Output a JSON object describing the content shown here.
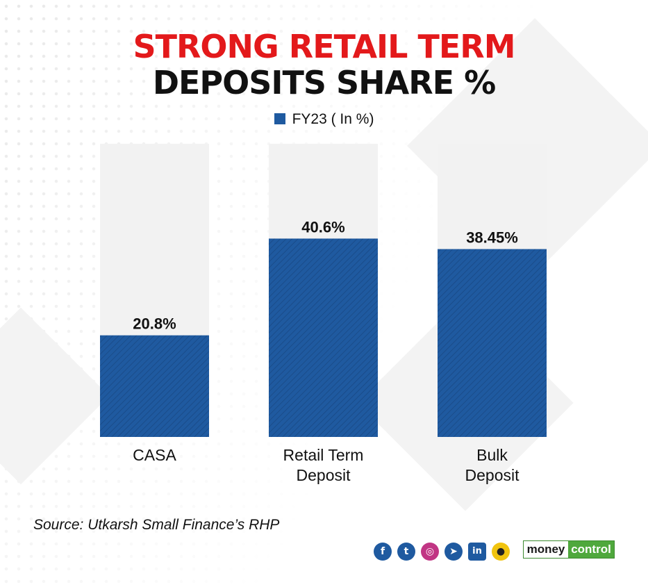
{
  "title": {
    "line1": "STRONG RETAIL TERM",
    "line2": "DEPOSITS SHARE %"
  },
  "legend": {
    "label": "FY23 ( In %)",
    "color": "#1f5aa0"
  },
  "chart_data": {
    "type": "bar",
    "categories": [
      [
        "CASA"
      ],
      [
        "Retail Term",
        "Deposit"
      ],
      [
        "Bulk",
        "Deposit"
      ]
    ],
    "series": [
      {
        "name": "FY23 ( In %)",
        "values": [
          20.8,
          40.6,
          38.45
        ]
      }
    ],
    "data_labels": [
      "20.8%",
      "40.6%",
      "38.45%"
    ],
    "ylim": [
      0,
      60
    ],
    "bar_color": "#1f5aa0",
    "track_color": "#f2f2f2",
    "legend_position": "top-center",
    "grid": false
  },
  "source": "Source: Utkarsh Small Finance’s RHP",
  "footer": {
    "social_icons": [
      "facebook-icon",
      "twitter-icon",
      "instagram-icon",
      "telegram-icon",
      "linkedin-icon",
      "koo-icon"
    ],
    "brand_left": "money",
    "brand_right": "control",
    "brand_color": "#4fa83d"
  }
}
